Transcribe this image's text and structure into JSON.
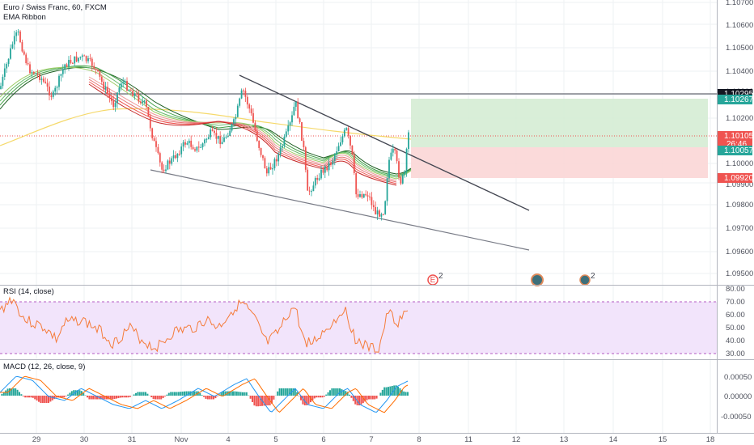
{
  "header": {
    "symbol_title": "Euro / Swiss Franc, 60, FXCM",
    "indicator_ema": "EMA Ribbon"
  },
  "price_axis": {
    "ticks": [
      "1.10700",
      "1.10600",
      "1.10500",
      "1.10400",
      "1.10300",
      "1.10200",
      "1.10000",
      "1.09900",
      "1.09800",
      "1.09700",
      "1.09600",
      "1.09500"
    ],
    "badges": [
      {
        "label": "1.10295",
        "color": "#131722"
      },
      {
        "label": "1.10267",
        "color": "#26a69a"
      },
      {
        "label": "1.10105",
        "color": "#ef5350"
      },
      {
        "label": "26:46",
        "color": "#ffffff"
      },
      {
        "label": "1.10057",
        "color": "#26a69a"
      },
      {
        "label": "1.09920",
        "color": "#ef5350"
      }
    ]
  },
  "rsi": {
    "title": "RSI (14, close)",
    "ticks": [
      "80.00",
      "70.00",
      "60.00",
      "50.00",
      "40.00",
      "30.00"
    ]
  },
  "macd": {
    "title": "MACD (12, 26, close, 9)",
    "ticks": [
      "0.00050",
      "0.00000",
      "-0.00050"
    ]
  },
  "time_axis": {
    "labels": [
      "29",
      "30",
      "31",
      "Nov",
      "4",
      "5",
      "6",
      "7",
      "8",
      "11",
      "12",
      "13",
      "14",
      "15",
      "18"
    ]
  },
  "events": [
    {
      "icon": "earnings-flag-icon",
      "badge": "2"
    },
    {
      "icon": "dividend-icon",
      "badge": ""
    },
    {
      "icon": "earnings-flag-icon",
      "badge": "2"
    }
  ],
  "colors": {
    "up": "#26a69a",
    "down": "#ef5350",
    "rsi_line": "#f57c3b",
    "rsi_band": "#9c27b0",
    "macd_line": "#2196f3",
    "signal_line": "#ff6d00",
    "ema_yellow": "#f5d96b"
  }
}
